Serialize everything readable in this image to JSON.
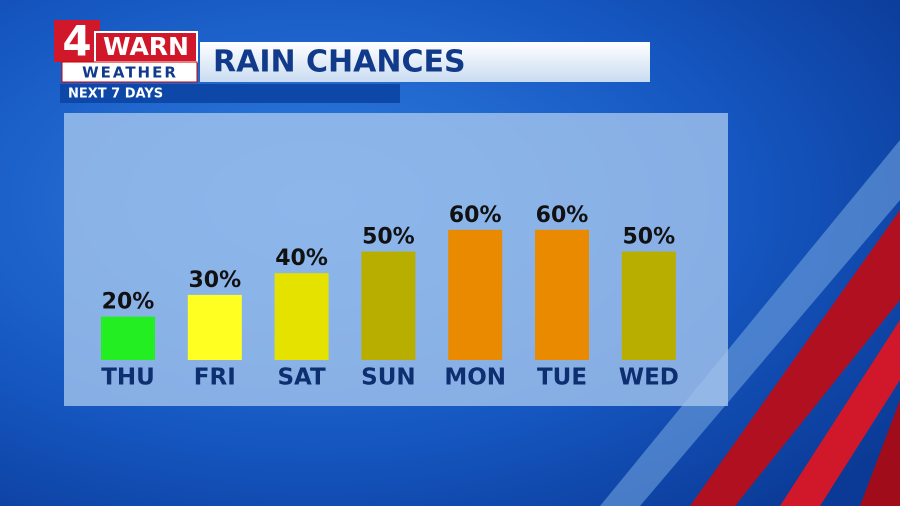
{
  "chart_data": {
    "type": "bar",
    "logo": {
      "number": "4",
      "word": "WARN",
      "sub": "WEATHER"
    },
    "title": "RAIN CHANCES",
    "subtitle": "NEXT 7 DAYS",
    "categories": [
      "THU",
      "FRI",
      "SAT",
      "SUN",
      "MON",
      "TUE",
      "WED"
    ],
    "values": [
      20,
      30,
      40,
      50,
      60,
      60,
      50
    ],
    "value_labels": [
      "20%",
      "30%",
      "40%",
      "50%",
      "60%",
      "60%",
      "50%"
    ],
    "colors": [
      "#22ee22",
      "#ffff22",
      "#e6e200",
      "#b8ae00",
      "#ea8a00",
      "#ea8a00",
      "#b8ae00"
    ]
  }
}
